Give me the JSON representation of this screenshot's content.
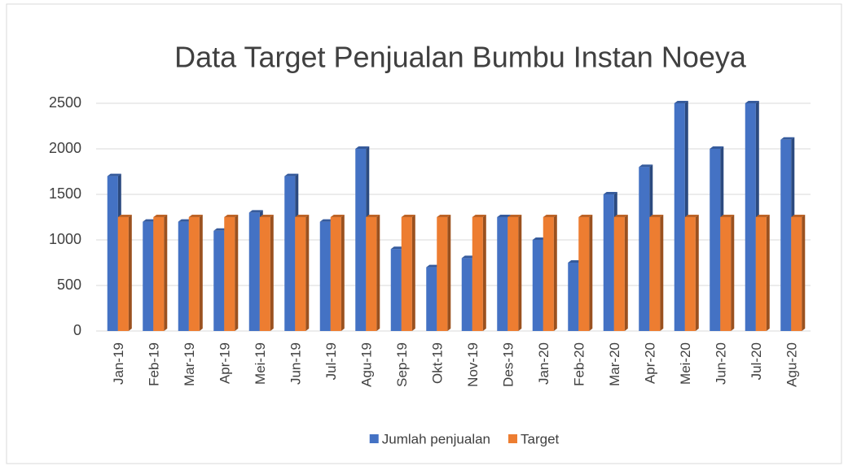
{
  "chart_data": {
    "type": "bar3d",
    "title": "Data Target Penjualan Bumbu Instan Noeya",
    "categories": [
      "Jan-19",
      "Feb-19",
      "Mar-19",
      "Apr-19",
      "Mei-19",
      "Jun-19",
      "Jul-19",
      "Agu-19",
      "Sep-19",
      "Okt-19",
      "Nov-19",
      "Des-19",
      "Jan-20",
      "Feb-20",
      "Mar-20",
      "Apr-20",
      "Mei-20",
      "Jun-20",
      "Jul-20",
      "Agu-20"
    ],
    "series": [
      {
        "name": "Jumlah penjualan",
        "color": "#4472c4",
        "values": [
          1700,
          1200,
          1200,
          1100,
          1300,
          1700,
          1200,
          2000,
          900,
          700,
          800,
          1250,
          1000,
          750,
          1500,
          1800,
          2500,
          2000,
          2500,
          2100
        ]
      },
      {
        "name": "Target",
        "color": "#ed7d31",
        "values": [
          1250,
          1250,
          1250,
          1250,
          1250,
          1250,
          1250,
          1250,
          1250,
          1250,
          1250,
          1250,
          1250,
          1250,
          1250,
          1250,
          1250,
          1250,
          1250,
          1250
        ]
      }
    ],
    "ylim": [
      0,
      2500
    ],
    "yticks": [
      0,
      500,
      1000,
      1500,
      2000,
      2500
    ],
    "grid": true,
    "legend": "bottom"
  }
}
